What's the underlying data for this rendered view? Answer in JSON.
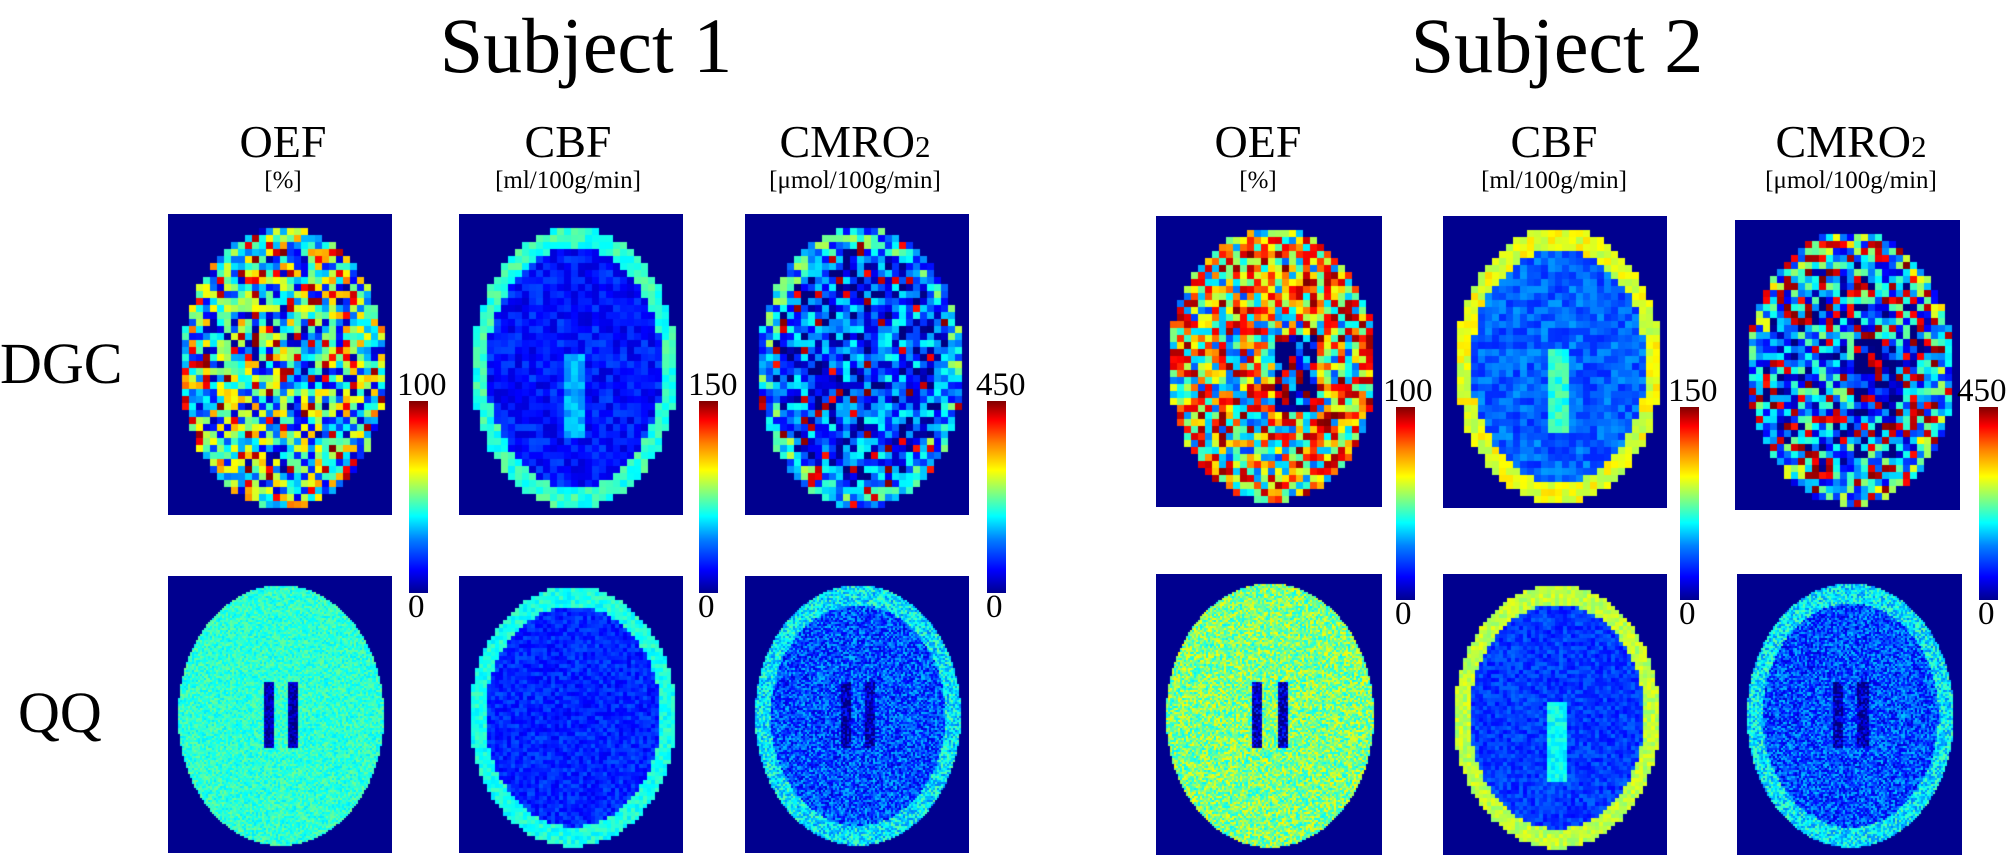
{
  "subjects": [
    {
      "title": "Subject 1"
    },
    {
      "title": "Subject 2"
    }
  ],
  "rows": [
    {
      "label": "DGC"
    },
    {
      "label": "QQ"
    }
  ],
  "columns": [
    {
      "title": "OEF",
      "title_sub": "",
      "unit": "[%]",
      "max": "100",
      "min": "0"
    },
    {
      "title": "CBF",
      "title_sub": "",
      "unit": "[ml/100g/min]",
      "max": "150",
      "min": "0"
    },
    {
      "title": "CMRO",
      "title_sub": "2",
      "unit": "[μmol/100g/min]",
      "max": "450",
      "min": "0"
    }
  ],
  "colormap": {
    "name": "jet",
    "stops": [
      "#00008f",
      "#0000ff",
      "#0080ff",
      "#00ffff",
      "#80ff80",
      "#ffff00",
      "#ff8000",
      "#ff0000",
      "#800000"
    ]
  }
}
